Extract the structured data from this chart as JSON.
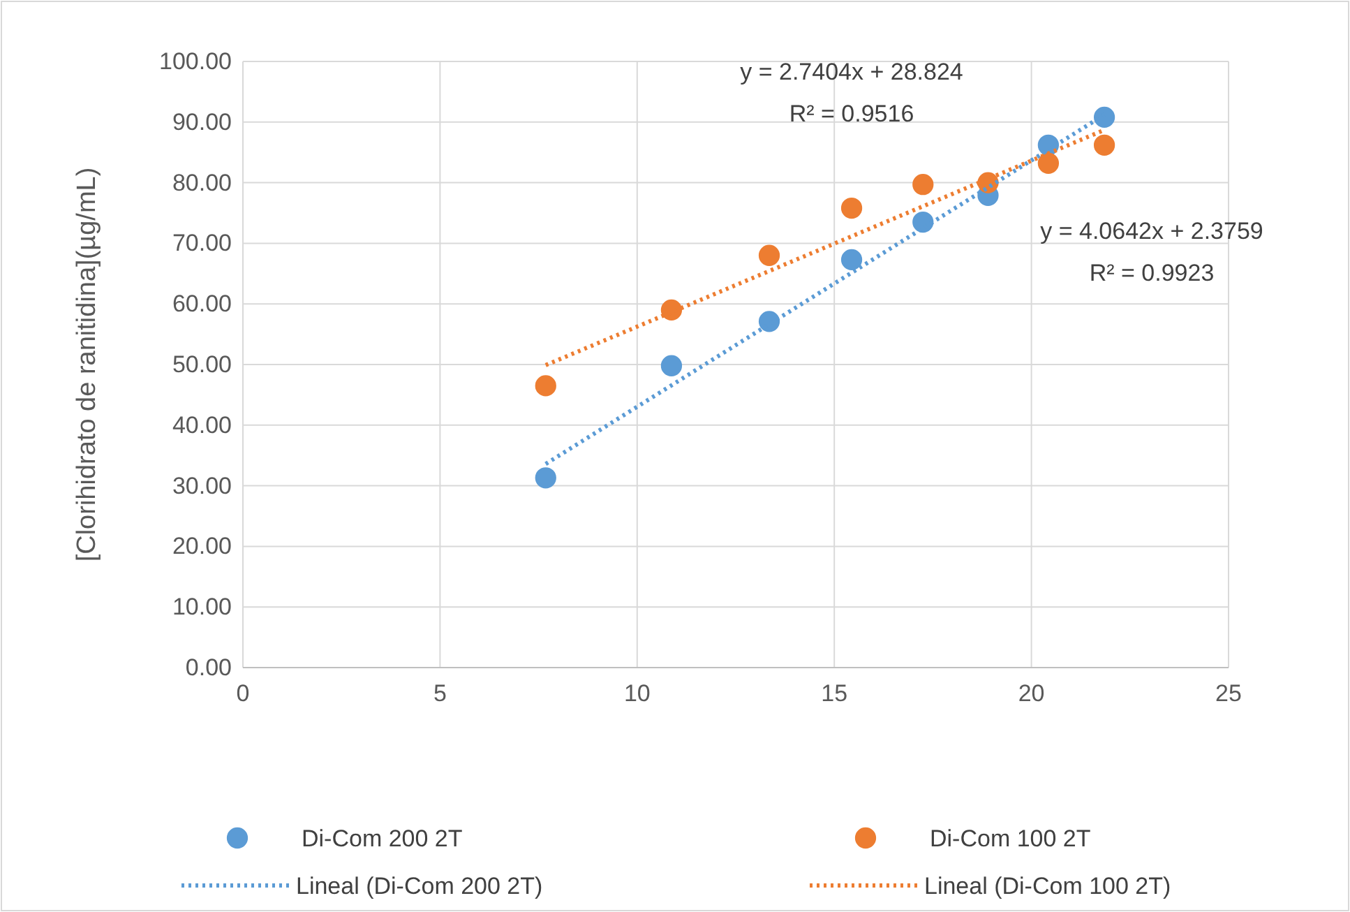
{
  "chart_data": {
    "type": "scatter",
    "ylabel": "[Clorihidrato de ranitidina](µg/mL)",
    "xlim": [
      0,
      25
    ],
    "xticks": [
      0,
      5,
      10,
      15,
      20,
      25
    ],
    "ylim": [
      0,
      100
    ],
    "yticks": [
      {
        "value": 0,
        "label": "0.00"
      },
      {
        "value": 10,
        "label": "10.00"
      },
      {
        "value": 20,
        "label": "20.00"
      },
      {
        "value": 30,
        "label": "30.00"
      },
      {
        "value": 40,
        "label": "40.00"
      },
      {
        "value": 50,
        "label": "50.00"
      },
      {
        "value": 60,
        "label": "60.00"
      },
      {
        "value": 70,
        "label": "70.00"
      },
      {
        "value": 80,
        "label": "80.00"
      },
      {
        "value": 90,
        "label": "90.00"
      },
      {
        "value": 100,
        "label": "100.00"
      }
    ],
    "grid": true,
    "legend": "bottom",
    "series": [
      {
        "name": "Di-Com 200 2T",
        "marker": "circle",
        "color": "#5b9bd5",
        "x": [
          7.68,
          10.87,
          13.35,
          15.44,
          17.25,
          18.9,
          20.43,
          21.85
        ],
        "values": [
          31.3,
          49.8,
          57.1,
          67.3,
          73.5,
          77.9,
          86.2,
          90.8
        ]
      },
      {
        "name": "Di-Com 100 2T",
        "marker": "circle",
        "color": "#ed7d31",
        "x": [
          7.68,
          10.87,
          13.35,
          15.44,
          17.25,
          18.9,
          20.43,
          21.85
        ],
        "values": [
          46.5,
          59.0,
          68.0,
          75.8,
          79.7,
          80.0,
          83.2,
          86.2
        ]
      },
      {
        "name": "Lineal (Di-Com 200 2T)",
        "type": "line",
        "marker": "none",
        "line_style": "dotted",
        "color": "#5b9bd5",
        "x": [
          7.68,
          21.85
        ],
        "values": [
          33.6,
          91.2
        ]
      },
      {
        "name": "Lineal (Di-Com 100 2T)",
        "type": "line",
        "marker": "none",
        "line_style": "dotted",
        "color": "#ed7d31",
        "x": [
          7.68,
          21.85
        ],
        "values": [
          49.9,
          88.7
        ]
      }
    ],
    "annotations": [
      "y = 2.7404x + 28.824",
      "R² = 0.9516",
      "y = 4.0642x + 2.3759",
      "R² = 0.9923"
    ]
  }
}
